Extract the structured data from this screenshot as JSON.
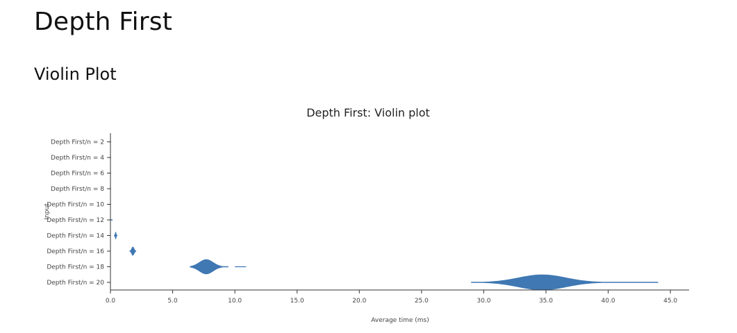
{
  "page": {
    "title": "Depth First",
    "section": "Violin Plot"
  },
  "chart_data": {
    "type": "violin",
    "title": "Depth First: Violin plot",
    "xlabel": "Average time (ms)",
    "ylabel": "Input",
    "xlim": [
      0,
      46.5
    ],
    "xticks": [
      "0.0",
      "5.0",
      "10.0",
      "15.0",
      "20.0",
      "25.0",
      "30.0",
      "35.0",
      "40.0",
      "45.0"
    ],
    "categories": [
      "Depth First/n = 2",
      "Depth First/n = 4",
      "Depth First/n = 6",
      "Depth First/n = 8",
      "Depth First/n = 10",
      "Depth First/n = 12",
      "Depth First/n = 14",
      "Depth First/n = 16",
      "Depth First/n = 18",
      "Depth First/n = 20"
    ],
    "fill_color": "#3f78b3",
    "violins": [
      {
        "category": "Depth First/n = 2",
        "min": 0.0,
        "max": 0.0,
        "mode": 0.0,
        "spread": 0.01,
        "peak": 0.0
      },
      {
        "category": "Depth First/n = 4",
        "min": 0.0,
        "max": 0.0,
        "mode": 0.0,
        "spread": 0.01,
        "peak": 0.0
      },
      {
        "category": "Depth First/n = 6",
        "min": 0.0,
        "max": 0.0,
        "mode": 0.0,
        "spread": 0.01,
        "peak": 0.0
      },
      {
        "category": "Depth First/n = 8",
        "min": 0.0,
        "max": 0.0,
        "mode": 0.0,
        "spread": 0.01,
        "peak": 0.0
      },
      {
        "category": "Depth First/n = 10",
        "min": 0.0,
        "max": 0.0,
        "mode": 0.0,
        "spread": 0.01,
        "peak": 0.0
      },
      {
        "category": "Depth First/n = 12",
        "min": 0.05,
        "max": 0.15,
        "mode": 0.1,
        "spread": 0.03,
        "peak": 0.05
      },
      {
        "category": "Depth First/n = 14",
        "min": 0.3,
        "max": 0.55,
        "mode": 0.42,
        "spread": 0.04,
        "peak": 0.45
      },
      {
        "category": "Depth First/n = 16",
        "min": 1.55,
        "max": 2.05,
        "mode": 1.8,
        "spread": 0.1,
        "peak": 0.55
      },
      {
        "category": "Depth First/n = 18",
        "min": 6.4,
        "max": 10.9,
        "mode": 7.7,
        "spread": 0.55,
        "peak": 0.95,
        "tail": [
          10.0,
          10.9
        ]
      },
      {
        "category": "Depth First/n = 20",
        "min": 29.0,
        "max": 44.0,
        "mode": 34.7,
        "spread": 1.9,
        "peak": 1.0
      }
    ]
  }
}
